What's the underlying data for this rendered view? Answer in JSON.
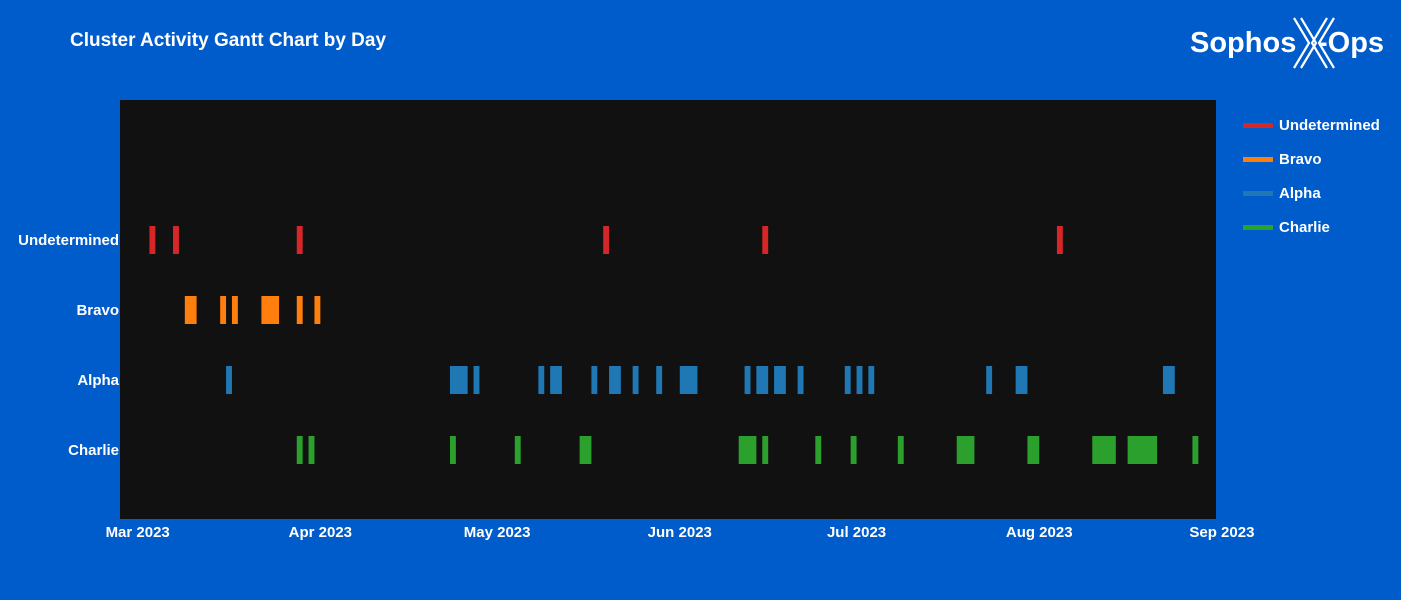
{
  "chart_data": {
    "type": "gantt",
    "title": "Cluster Activity Gantt Chart by Day",
    "categories": [
      "Undetermined",
      "Bravo",
      "Alpha",
      "Charlie"
    ],
    "x_tick_labels": [
      "Mar 2023",
      "Apr 2023",
      "May 2023",
      "Jun 2023",
      "Jul 2023",
      "Aug 2023",
      "Sep 2023"
    ],
    "x_range": [
      "2023-02-26",
      "2023-08-31"
    ],
    "legend_position": "right",
    "grid": false,
    "plot_background": "#111111",
    "series": [
      {
        "name": "Undetermined",
        "color": "#d62728",
        "row": "Undetermined",
        "tasks": [
          [
            "2023-03-03",
            "2023-03-04"
          ],
          [
            "2023-03-07",
            "2023-03-08"
          ],
          [
            "2023-03-28",
            "2023-03-29"
          ],
          [
            "2023-05-19",
            "2023-05-20"
          ],
          [
            "2023-06-15",
            "2023-06-16"
          ],
          [
            "2023-08-04",
            "2023-08-05"
          ]
        ]
      },
      {
        "name": "Bravo",
        "color": "#ff7f0e",
        "row": "Bravo",
        "tasks": [
          [
            "2023-03-09",
            "2023-03-11"
          ],
          [
            "2023-03-15",
            "2023-03-16"
          ],
          [
            "2023-03-17",
            "2023-03-18"
          ],
          [
            "2023-03-22",
            "2023-03-25"
          ],
          [
            "2023-03-28",
            "2023-03-29"
          ],
          [
            "2023-03-31",
            "2023-04-01"
          ]
        ]
      },
      {
        "name": "Alpha",
        "color": "#1f77b4",
        "row": "Alpha",
        "tasks": [
          [
            "2023-03-16",
            "2023-03-17"
          ],
          [
            "2023-04-23",
            "2023-04-26"
          ],
          [
            "2023-04-27",
            "2023-04-28"
          ],
          [
            "2023-05-08",
            "2023-05-09"
          ],
          [
            "2023-05-10",
            "2023-05-12"
          ],
          [
            "2023-05-17",
            "2023-05-18"
          ],
          [
            "2023-05-20",
            "2023-05-22"
          ],
          [
            "2023-05-24",
            "2023-05-25"
          ],
          [
            "2023-05-28",
            "2023-05-29"
          ],
          [
            "2023-06-01",
            "2023-06-04"
          ],
          [
            "2023-06-12",
            "2023-06-13"
          ],
          [
            "2023-06-14",
            "2023-06-16"
          ],
          [
            "2023-06-17",
            "2023-06-19"
          ],
          [
            "2023-06-21",
            "2023-06-22"
          ],
          [
            "2023-06-29",
            "2023-06-30"
          ],
          [
            "2023-07-01",
            "2023-07-02"
          ],
          [
            "2023-07-03",
            "2023-07-04"
          ],
          [
            "2023-07-23",
            "2023-07-24"
          ],
          [
            "2023-07-28",
            "2023-07-30"
          ],
          [
            "2023-08-22",
            "2023-08-24"
          ]
        ]
      },
      {
        "name": "Charlie",
        "color": "#2ca02c",
        "row": "Charlie",
        "tasks": [
          [
            "2023-03-28",
            "2023-03-29"
          ],
          [
            "2023-03-30",
            "2023-03-31"
          ],
          [
            "2023-04-23",
            "2023-04-24"
          ],
          [
            "2023-05-04",
            "2023-05-05"
          ],
          [
            "2023-05-15",
            "2023-05-17"
          ],
          [
            "2023-06-11",
            "2023-06-14"
          ],
          [
            "2023-06-15",
            "2023-06-16"
          ],
          [
            "2023-06-24",
            "2023-06-25"
          ],
          [
            "2023-06-30",
            "2023-07-01"
          ],
          [
            "2023-07-08",
            "2023-07-09"
          ],
          [
            "2023-07-18",
            "2023-07-21"
          ],
          [
            "2023-07-30",
            "2023-08-01"
          ],
          [
            "2023-08-10",
            "2023-08-14"
          ],
          [
            "2023-08-16",
            "2023-08-21"
          ],
          [
            "2023-08-27",
            "2023-08-28"
          ]
        ]
      }
    ]
  },
  "brand": {
    "name_text": "Sophos",
    "x_letter": "X",
    "suffix_text": "-Ops",
    "color": "#ffffff"
  }
}
